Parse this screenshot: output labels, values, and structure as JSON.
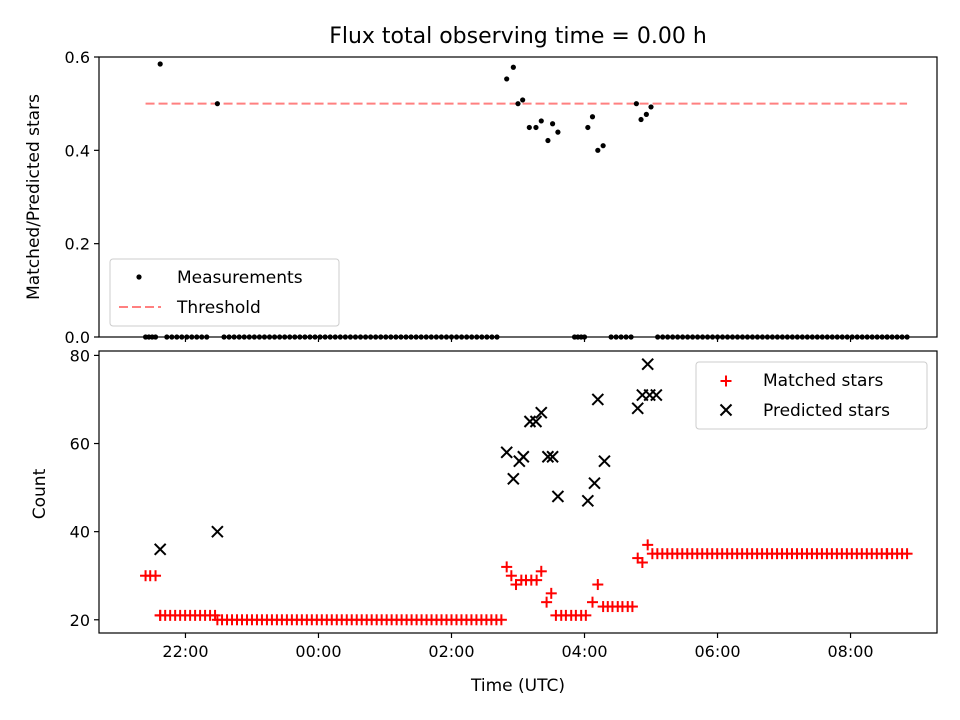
{
  "title": "Flux total observing time = 0.00 h",
  "colors": {
    "measurement": "#000000",
    "threshold": "#ff8080",
    "matched": "#ff0000",
    "predicted": "#000000"
  },
  "chart_data": [
    {
      "type": "scatter",
      "ylabel": "Matched/Predicted stars",
      "xlabel": "",
      "xlim": [
        20.7,
        33.3
      ],
      "ylim": [
        0,
        0.6
      ],
      "yticks": [
        0.0,
        0.2,
        0.4,
        0.6
      ],
      "ytick_labels": [
        "0.0",
        "0.2",
        "0.4",
        "0.6"
      ],
      "legend": {
        "position": "lower-left",
        "entries": [
          "Measurements",
          "Threshold"
        ]
      },
      "threshold": {
        "name": "Threshold",
        "y": 0.5,
        "x_range": [
          21.4,
          32.85
        ]
      },
      "series": [
        {
          "name": "Measurements",
          "marker": "dot",
          "points": [
            [
              21.62,
              0.585
            ],
            [
              22.48,
              0.5
            ],
            [
              26.83,
              0.553
            ],
            [
              26.93,
              0.578
            ],
            [
              27.0,
              0.5
            ],
            [
              27.07,
              0.508
            ],
            [
              27.17,
              0.449
            ],
            [
              27.27,
              0.449
            ],
            [
              27.35,
              0.463
            ],
            [
              27.45,
              0.421
            ],
            [
              27.52,
              0.457
            ],
            [
              27.6,
              0.439
            ],
            [
              28.05,
              0.449
            ],
            [
              28.12,
              0.472
            ],
            [
              28.2,
              0.4
            ],
            [
              28.28,
              0.41
            ],
            [
              28.78,
              0.5
            ],
            [
              28.85,
              0.466
            ],
            [
              28.93,
              0.477
            ],
            [
              29.0,
              0.493
            ]
          ],
          "zero_runs": [
            [
              21.4,
              21.55,
              0.05
            ],
            [
              21.72,
              22.38,
              0.075
            ],
            [
              22.58,
              26.75,
              0.076
            ],
            [
              27.85,
              28.0,
              0.05
            ],
            [
              28.4,
              28.7,
              0.075
            ],
            [
              29.1,
              32.6,
              0.075
            ],
            [
              32.55,
              32.9,
              0.075
            ]
          ]
        }
      ]
    },
    {
      "type": "scatter",
      "ylabel": "Count",
      "xlabel": "Time (UTC)",
      "xlim": [
        20.7,
        33.3
      ],
      "ylim": [
        17,
        81
      ],
      "yticks": [
        20,
        40,
        60,
        80
      ],
      "ytick_labels": [
        "20",
        "40",
        "60",
        "80"
      ],
      "xticks": [
        22,
        24,
        26,
        28,
        30,
        32
      ],
      "xtick_labels": [
        "22:00",
        "00:00",
        "02:00",
        "04:00",
        "06:00",
        "08:00"
      ],
      "legend": {
        "position": "top-right",
        "entries": [
          "Matched stars",
          "Predicted stars"
        ]
      },
      "series": [
        {
          "name": "Matched stars",
          "marker": "plus",
          "points": [
            [
              21.4,
              30
            ],
            [
              21.47,
              30
            ],
            [
              21.55,
              30
            ],
            [
              21.62,
              21
            ],
            [
              22.48,
              20
            ],
            [
              26.83,
              32
            ],
            [
              26.9,
              30
            ],
            [
              26.97,
              28
            ],
            [
              27.05,
              29
            ],
            [
              27.12,
              29
            ],
            [
              27.2,
              29
            ],
            [
              27.28,
              29
            ],
            [
              27.35,
              31
            ],
            [
              27.43,
              24
            ],
            [
              27.5,
              26
            ],
            [
              27.57,
              21
            ],
            [
              27.65,
              21
            ],
            [
              27.72,
              21
            ],
            [
              27.8,
              21
            ],
            [
              27.87,
              21
            ],
            [
              27.95,
              21
            ],
            [
              28.02,
              21
            ],
            [
              28.12,
              24
            ],
            [
              28.2,
              28
            ],
            [
              28.28,
              23
            ],
            [
              28.35,
              23
            ],
            [
              28.42,
              23
            ],
            [
              28.5,
              23
            ],
            [
              28.57,
              23
            ],
            [
              28.65,
              23
            ],
            [
              28.72,
              23
            ],
            [
              28.8,
              34
            ],
            [
              28.87,
              33
            ],
            [
              28.95,
              37
            ]
          ],
          "runs": [
            [
              21.62,
              22.45,
              0.075,
              21
            ],
            [
              22.55,
              26.75,
              0.075,
              20
            ],
            [
              29.02,
              32.6,
              0.075,
              35
            ],
            [
              32.55,
              32.9,
              0.075,
              35
            ]
          ]
        },
        {
          "name": "Predicted stars",
          "marker": "x",
          "points": [
            [
              21.62,
              36
            ],
            [
              22.48,
              40
            ],
            [
              26.83,
              58
            ],
            [
              26.93,
              52
            ],
            [
              27.02,
              56
            ],
            [
              27.08,
              57
            ],
            [
              27.18,
              65
            ],
            [
              27.27,
              65
            ],
            [
              27.35,
              67
            ],
            [
              27.45,
              57
            ],
            [
              27.52,
              57
            ],
            [
              27.6,
              48
            ],
            [
              28.05,
              47
            ],
            [
              28.15,
              51
            ],
            [
              28.2,
              70
            ],
            [
              28.3,
              56
            ],
            [
              28.8,
              68
            ],
            [
              28.87,
              71
            ],
            [
              28.95,
              78
            ],
            [
              28.98,
              71
            ],
            [
              29.08,
              71
            ]
          ]
        }
      ]
    }
  ]
}
